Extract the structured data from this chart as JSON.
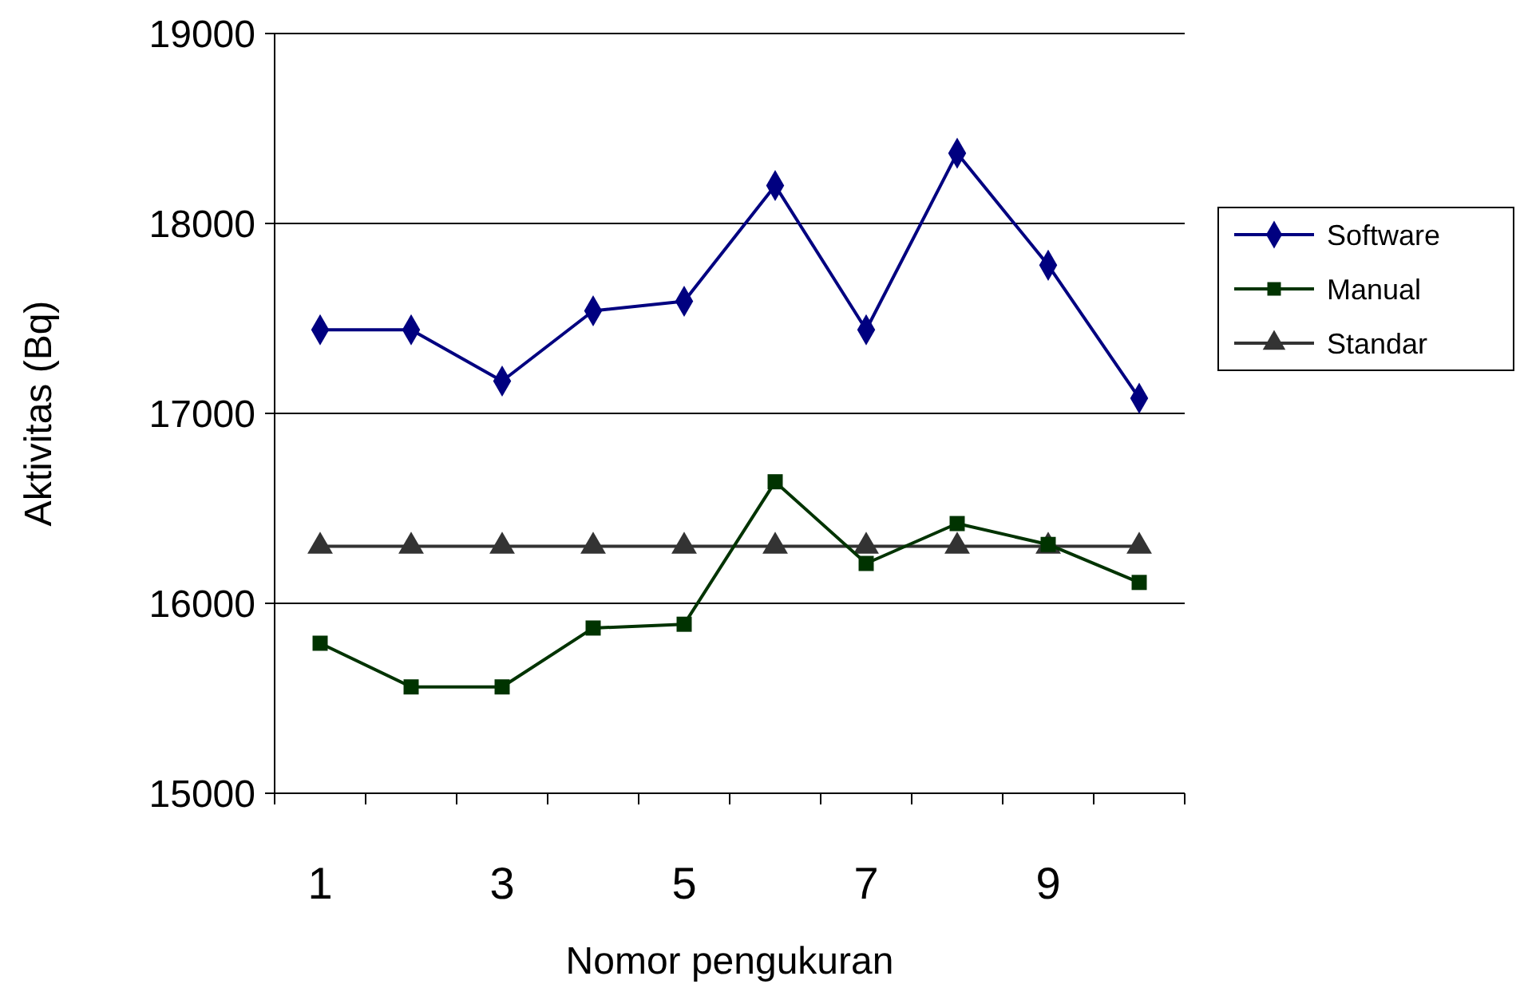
{
  "chart_data": {
    "type": "line",
    "xlabel": "Nomor pengukuran",
    "ylabel": "Aktivitas (Bq)",
    "categories": [
      "1",
      null,
      "3",
      null,
      "5",
      null,
      "7",
      null,
      "9",
      null
    ],
    "series": [
      {
        "name": "Software",
        "color": "#000080",
        "marker": "diamond",
        "values": [
          17440,
          17440,
          17170,
          17540,
          17590,
          18200,
          17440,
          18370,
          17780,
          17080
        ]
      },
      {
        "name": "Manual",
        "color": "#003300",
        "marker": "square",
        "values": [
          15790,
          15560,
          15560,
          15870,
          15890,
          16640,
          16210,
          16420,
          16310,
          16110
        ]
      },
      {
        "name": "Standar",
        "color": "#333333",
        "marker": "triangle",
        "values": [
          16300,
          16300,
          16300,
          16300,
          16300,
          16300,
          16300,
          16300,
          16300,
          16300
        ]
      }
    ],
    "ylim": [
      15000,
      19000
    ],
    "yticks": [
      15000,
      16000,
      17000,
      18000,
      19000
    ],
    "grid": "y",
    "legend": "right"
  }
}
